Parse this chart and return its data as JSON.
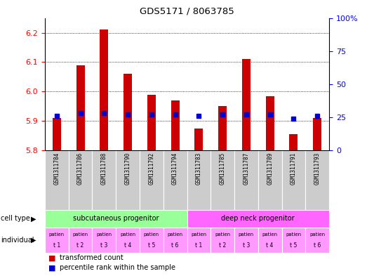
{
  "title": "GDS5171 / 8063785",
  "samples": [
    "GSM1311784",
    "GSM1311786",
    "GSM1311788",
    "GSM1311790",
    "GSM1311792",
    "GSM1311794",
    "GSM1311783",
    "GSM1311785",
    "GSM1311787",
    "GSM1311789",
    "GSM1311791",
    "GSM1311793"
  ],
  "bar_values": [
    5.91,
    6.09,
    6.21,
    6.06,
    5.99,
    5.97,
    5.875,
    5.95,
    6.11,
    5.985,
    5.855,
    5.91
  ],
  "bar_bottom": 5.8,
  "percentile_values": [
    26,
    28,
    28,
    27,
    27,
    27,
    26,
    27,
    27,
    27,
    24,
    26
  ],
  "ylim_left": [
    5.8,
    6.25
  ],
  "ylim_right": [
    0,
    100
  ],
  "yticks_left": [
    5.8,
    5.9,
    6.0,
    6.1,
    6.2
  ],
  "yticks_right": [
    0,
    25,
    50,
    75,
    100
  ],
  "ytick_labels_right": [
    "0",
    "25",
    "50",
    "75",
    "100%"
  ],
  "bar_color": "#cc0000",
  "percentile_color": "#0000cc",
  "cell_type_groups": [
    {
      "label": "subcutaneous progenitor",
      "start": 0,
      "end": 6,
      "color": "#99ff99"
    },
    {
      "label": "deep neck progenitor",
      "start": 6,
      "end": 12,
      "color": "#ff66ff"
    }
  ],
  "individual_short": [
    "t 1",
    "t 2",
    "t 3",
    "t 4",
    "t 5",
    "t 6",
    "t 1",
    "t 2",
    "t 3",
    "t 4",
    "t 5",
    "t 6"
  ],
  "individual_color": "#ff99ff",
  "sample_label_bg": "#cccccc",
  "background_color": "#ffffff",
  "legend_items": [
    {
      "label": "transformed count",
      "color": "#cc0000",
      "marker": "s"
    },
    {
      "label": "percentile rank within the sample",
      "color": "#0000cc",
      "marker": "s"
    }
  ]
}
